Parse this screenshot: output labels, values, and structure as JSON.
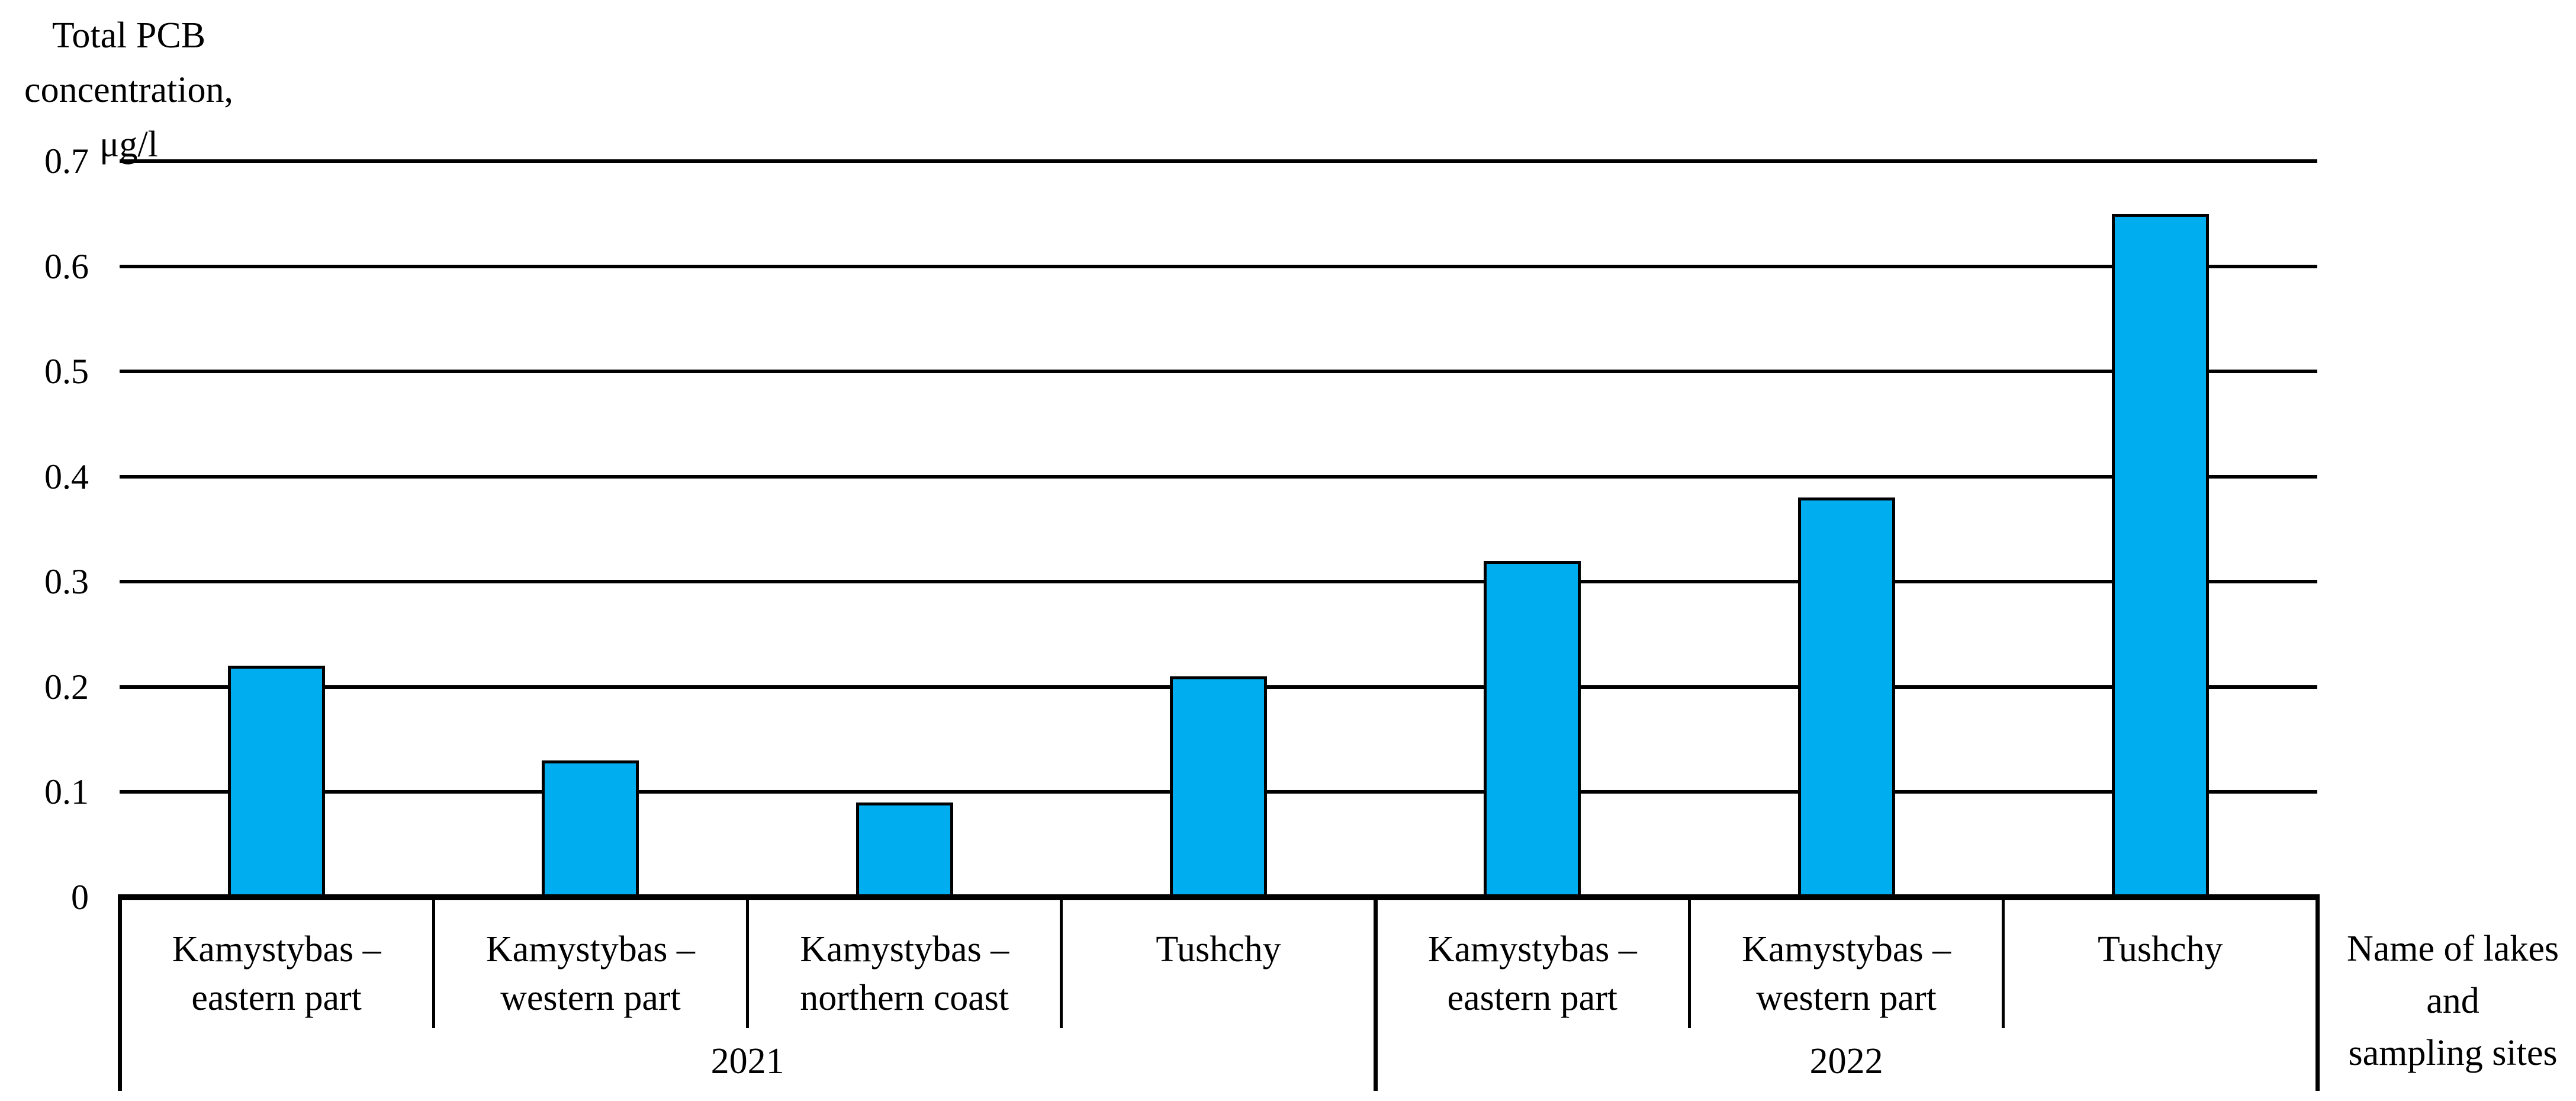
{
  "background": "#FFFFFF",
  "text_color": "#000000",
  "y_axis_title_lines": [
    "Total PCB",
    "concentration,",
    "μg/l"
  ],
  "x_axis_title_lines": [
    "Name of lakes",
    "and",
    "sampling sites"
  ],
  "chart_data": {
    "type": "bar",
    "title": "",
    "ylabel": "Total PCB concentration, μg/l",
    "xlabel": "Name of lakes and sampling sites",
    "ylim": [
      0,
      0.7
    ],
    "ytick_step": 0.1,
    "ytick_labels": [
      "0.7",
      "0.6",
      "0.5",
      "0.4",
      "0.3",
      "0.2",
      "0.1",
      "0"
    ],
    "grid": "horizontal lines at every 0.1, drawn behind bars",
    "legend": "none",
    "bar_color": "#00AEEF",
    "bar_border_color": "#000000",
    "line_color": "#000000",
    "categories": [
      "Kamystybas – eastern part",
      "Kamystybas – western part",
      "Kamystybas – northern coast",
      "Tushchy",
      "Kamystybas – eastern part",
      "Kamystybas – western part",
      "Tushchy"
    ],
    "values": [
      0.22,
      0.13,
      0.09,
      0.21,
      0.32,
      0.38,
      0.65
    ],
    "groups": [
      {
        "label": "2021",
        "categories": [
          [
            "Kamystybas –",
            "eastern part"
          ],
          [
            "Kamystybas –",
            "western part"
          ],
          [
            "Kamystybas –",
            "northern coast"
          ],
          [
            "Tushchy"
          ]
        ],
        "values": [
          0.22,
          0.13,
          0.09,
          0.21
        ]
      },
      {
        "label": "2022",
        "categories": [
          [
            "Kamystybas –",
            "eastern part"
          ],
          [
            "Kamystybas –",
            "western part"
          ],
          [
            "Tushchy"
          ]
        ],
        "values": [
          0.32,
          0.38,
          0.65
        ]
      }
    ]
  }
}
